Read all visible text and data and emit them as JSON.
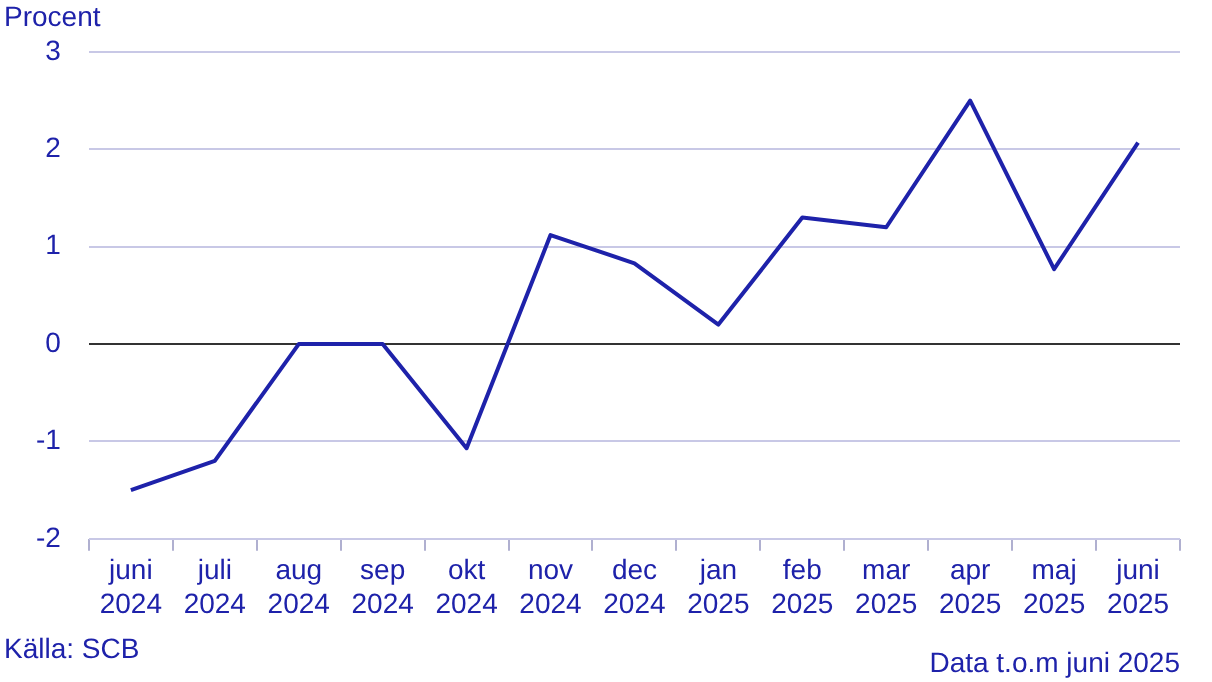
{
  "chart_data": {
    "type": "line",
    "ylabel": "Procent",
    "categories": [
      "juni 2024",
      "juli 2024",
      "aug 2024",
      "sep 2024",
      "okt 2024",
      "nov 2024",
      "dec 2024",
      "jan 2025",
      "feb 2025",
      "mar 2025",
      "apr 2025",
      "maj 2025",
      "juni 2025"
    ],
    "series": [
      {
        "color": "#1e22aa",
        "values": [
          -1.5,
          -1.2,
          0.0,
          0.0,
          -1.07,
          1.12,
          0.83,
          0.2,
          1.3,
          1.2,
          2.5,
          0.77,
          2.07
        ]
      }
    ],
    "ylim": [
      -2,
      3
    ],
    "yticks": [
      -2,
      -1,
      0,
      1,
      2,
      3
    ],
    "grid": "y",
    "legend": false,
    "marker": "none",
    "line_style": "solid",
    "annotations": [
      "Källa: SCB",
      "Data t.o.m juni 2025"
    ]
  }
}
